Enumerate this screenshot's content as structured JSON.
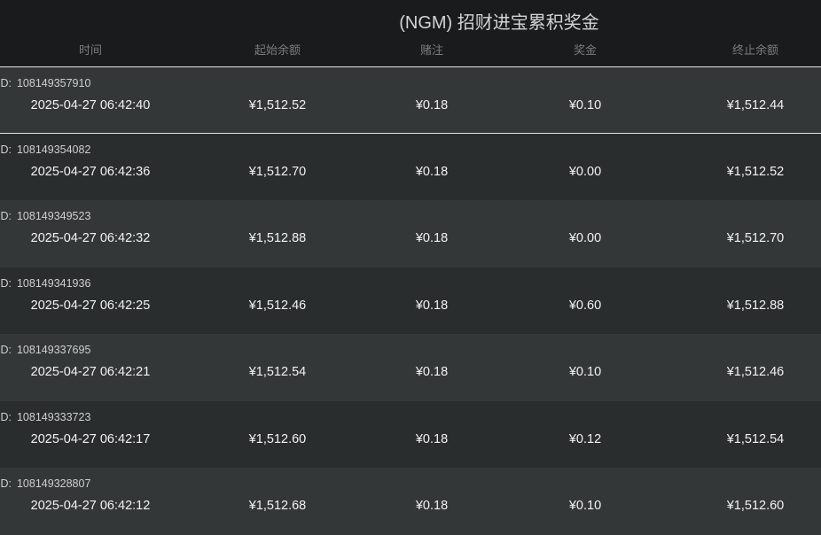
{
  "title": "(NGM) 招财进宝累积奖金",
  "columns": [
    "时间",
    "起始余额",
    "赌注",
    "奖金",
    "终止余额"
  ],
  "id_label": "ID:",
  "rows": [
    {
      "id": "108149357910",
      "time": "2025-04-27 06:42:40",
      "start": "¥1,512.52",
      "bet": "¥0.18",
      "prize": "¥0.10",
      "end": "¥1,512.44",
      "selected": true
    },
    {
      "id": "108149354082",
      "time": "2025-04-27 06:42:36",
      "start": "¥1,512.70",
      "bet": "¥0.18",
      "prize": "¥0.00",
      "end": "¥1,512.52"
    },
    {
      "id": "108149349523",
      "time": "2025-04-27 06:42:32",
      "start": "¥1,512.88",
      "bet": "¥0.18",
      "prize": "¥0.00",
      "end": "¥1,512.70"
    },
    {
      "id": "108149341936",
      "time": "2025-04-27 06:42:25",
      "start": "¥1,512.46",
      "bet": "¥0.18",
      "prize": "¥0.60",
      "end": "¥1,512.88"
    },
    {
      "id": "108149337695",
      "time": "2025-04-27 06:42:21",
      "start": "¥1,512.54",
      "bet": "¥0.18",
      "prize": "¥0.10",
      "end": "¥1,512.46"
    },
    {
      "id": "108149333723",
      "time": "2025-04-27 06:42:17",
      "start": "¥1,512.60",
      "bet": "¥0.18",
      "prize": "¥0.12",
      "end": "¥1,512.54"
    },
    {
      "id": "108149328807",
      "time": "2025-04-27 06:42:12",
      "start": "¥1,512.68",
      "bet": "¥0.18",
      "prize": "¥0.10",
      "end": "¥1,512.60"
    }
  ]
}
